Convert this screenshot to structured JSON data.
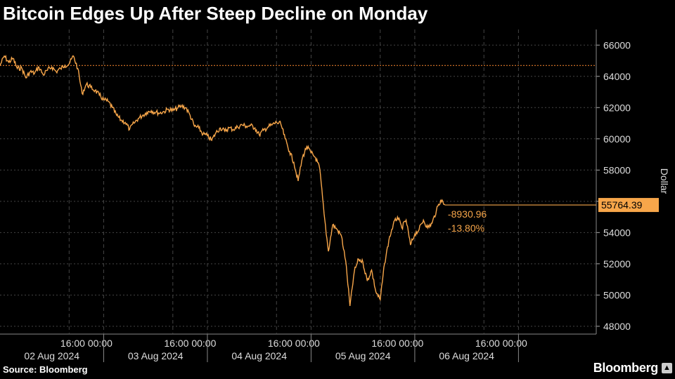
{
  "header": {
    "title": "Bitcoin Edges Up After Steep Decline on Monday"
  },
  "footer": {
    "source": "Source: Bloomberg",
    "brand": "Bloomberg"
  },
  "colors": {
    "line": "#f7a64a",
    "background": "#000000",
    "grid": "#444444",
    "reference": "#e07a2a"
  },
  "chart_data": {
    "type": "line",
    "title": "Bitcoin Edges Up After Steep Decline on Monday",
    "ylabel": "Dollar",
    "ylim": [
      47500,
      67000
    ],
    "y_ticks": [
      48000,
      50000,
      52000,
      54000,
      56000,
      58000,
      60000,
      62000,
      64000,
      66000
    ],
    "x_time_labels": [
      "16:00",
      "00:00",
      "16:00",
      "00:00",
      "16:00",
      "00:00",
      "16:00",
      "00:00",
      "16:00",
      "00:00"
    ],
    "x_date_labels": [
      "02 Aug 2024",
      "03 Aug 2024",
      "04 Aug 2024",
      "05 Aug 2024",
      "06 Aug 2024"
    ],
    "xlim": [
      "2024-08-02 00:00",
      "2024-08-07 18:00"
    ],
    "reference_line": 64695,
    "last_value": "55764.39",
    "change_abs": "-8930.96",
    "change_pct": "-13.80%",
    "grid": true,
    "series": [
      {
        "points": [
          [
            "2024-08-02 00:00",
            64700
          ],
          [
            "2024-08-02 01:00",
            65300
          ],
          [
            "2024-08-02 02:00",
            64900
          ],
          [
            "2024-08-02 03:00",
            65150
          ],
          [
            "2024-08-02 04:00",
            64500
          ],
          [
            "2024-08-02 05:00",
            64550
          ],
          [
            "2024-08-02 06:00",
            63900
          ],
          [
            "2024-08-02 07:00",
            64300
          ],
          [
            "2024-08-02 08:00",
            64200
          ],
          [
            "2024-08-02 09:00",
            64600
          ],
          [
            "2024-08-02 10:00",
            64100
          ],
          [
            "2024-08-02 11:00",
            64400
          ],
          [
            "2024-08-02 12:00",
            64600
          ],
          [
            "2024-08-02 13:00",
            64300
          ],
          [
            "2024-08-02 14:00",
            64500
          ],
          [
            "2024-08-02 15:00",
            64700
          ],
          [
            "2024-08-02 16:00",
            64800
          ],
          [
            "2024-08-02 17:00",
            65300
          ],
          [
            "2024-08-02 18:00",
            64500
          ],
          [
            "2024-08-02 19:00",
            62900
          ],
          [
            "2024-08-02 20:00",
            63500
          ],
          [
            "2024-08-02 21:00",
            63300
          ],
          [
            "2024-08-02 22:00",
            63100
          ],
          [
            "2024-08-02 23:00",
            62800
          ],
          [
            "2024-08-03 00:00",
            62500
          ],
          [
            "2024-08-03 01:00",
            62400
          ],
          [
            "2024-08-03 02:00",
            62000
          ],
          [
            "2024-08-03 03:00",
            61500
          ],
          [
            "2024-08-03 04:00",
            61200
          ],
          [
            "2024-08-03 05:00",
            61050
          ],
          [
            "2024-08-03 06:00",
            60600
          ],
          [
            "2024-08-03 07:00",
            61000
          ],
          [
            "2024-08-03 08:00",
            61300
          ],
          [
            "2024-08-03 09:00",
            61500
          ],
          [
            "2024-08-03 10:00",
            61700
          ],
          [
            "2024-08-03 11:00",
            61800
          ],
          [
            "2024-08-03 12:00",
            61700
          ],
          [
            "2024-08-03 13:00",
            61650
          ],
          [
            "2024-08-03 14:00",
            61750
          ],
          [
            "2024-08-03 15:00",
            61900
          ],
          [
            "2024-08-03 16:00",
            61800
          ],
          [
            "2024-08-03 17:00",
            61950
          ],
          [
            "2024-08-03 18:00",
            62100
          ],
          [
            "2024-08-03 19:00",
            62000
          ],
          [
            "2024-08-03 20:00",
            61500
          ],
          [
            "2024-08-03 21:00",
            60800
          ],
          [
            "2024-08-03 22:00",
            60700
          ],
          [
            "2024-08-03 23:00",
            60300
          ],
          [
            "2024-08-04 00:00",
            60200
          ],
          [
            "2024-08-04 01:00",
            59900
          ],
          [
            "2024-08-04 02:00",
            60400
          ],
          [
            "2024-08-04 03:00",
            60700
          ],
          [
            "2024-08-04 04:00",
            60500
          ],
          [
            "2024-08-04 05:00",
            60700
          ],
          [
            "2024-08-04 06:00",
            60600
          ],
          [
            "2024-08-04 07:00",
            60750
          ],
          [
            "2024-08-04 08:00",
            60900
          ],
          [
            "2024-08-04 09:00",
            60800
          ],
          [
            "2024-08-04 10:00",
            60850
          ],
          [
            "2024-08-04 11:00",
            60700
          ],
          [
            "2024-08-04 12:00",
            60250
          ],
          [
            "2024-08-04 13:00",
            60550
          ],
          [
            "2024-08-04 14:00",
            60750
          ],
          [
            "2024-08-04 15:00",
            60900
          ],
          [
            "2024-08-04 16:00",
            61050
          ],
          [
            "2024-08-04 17:00",
            60950
          ],
          [
            "2024-08-04 18:00",
            60000
          ],
          [
            "2024-08-04 19:00",
            59200
          ],
          [
            "2024-08-04 20:00",
            58500
          ],
          [
            "2024-08-04 21:00",
            57300
          ],
          [
            "2024-08-04 22:00",
            58800
          ],
          [
            "2024-08-04 23:00",
            59500
          ],
          [
            "2024-08-05 00:00",
            59100
          ],
          [
            "2024-08-05 01:00",
            58800
          ],
          [
            "2024-08-05 02:00",
            58100
          ],
          [
            "2024-08-05 03:00",
            55200
          ],
          [
            "2024-08-05 04:00",
            52800
          ],
          [
            "2024-08-05 05:00",
            54500
          ],
          [
            "2024-08-05 06:00",
            54200
          ],
          [
            "2024-08-05 07:00",
            53800
          ],
          [
            "2024-08-05 08:00",
            52200
          ],
          [
            "2024-08-05 09:00",
            49300
          ],
          [
            "2024-08-05 10:00",
            51500
          ],
          [
            "2024-08-05 11:00",
            52300
          ],
          [
            "2024-08-05 12:00",
            52100
          ],
          [
            "2024-08-05 13:00",
            50900
          ],
          [
            "2024-08-05 14:00",
            51600
          ],
          [
            "2024-08-05 15:00",
            50200
          ],
          [
            "2024-08-05 16:00",
            49700
          ],
          [
            "2024-08-05 17:00",
            52000
          ],
          [
            "2024-08-05 18:00",
            53500
          ],
          [
            "2024-08-05 19:00",
            54500
          ],
          [
            "2024-08-05 20:00",
            55000
          ],
          [
            "2024-08-05 21:00",
            54300
          ],
          [
            "2024-08-05 22:00",
            54800
          ],
          [
            "2024-08-05 23:00",
            53200
          ],
          [
            "2024-08-06 00:00",
            53900
          ],
          [
            "2024-08-06 01:00",
            54200
          ],
          [
            "2024-08-06 02:00",
            54800
          ],
          [
            "2024-08-06 03:00",
            54300
          ],
          [
            "2024-08-06 04:00",
            54600
          ],
          [
            "2024-08-06 05:00",
            55400
          ],
          [
            "2024-08-06 06:00",
            56100
          ],
          [
            "2024-08-06 07:00",
            55764.39
          ]
        ]
      }
    ]
  }
}
